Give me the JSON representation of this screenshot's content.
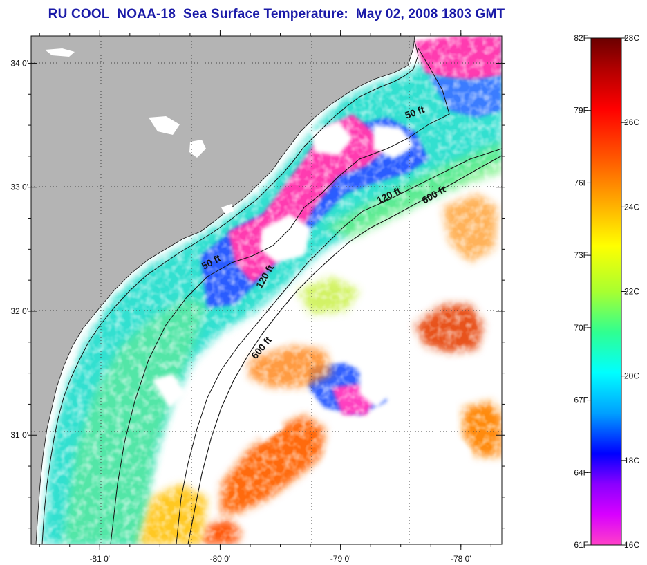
{
  "title": "RU COOL  NOAA-18  Sea Surface Temperature:  May 02, 2008 1803 GMT",
  "map": {
    "lat_ticks": [
      {
        "label": "34 0'",
        "value": 34.0
      },
      {
        "label": "33 0'",
        "value": 33.0
      },
      {
        "label": "32 0'",
        "value": 32.0
      },
      {
        "label": "31 0'",
        "value": 31.0
      }
    ],
    "lon_ticks": [
      {
        "label": "-81 0'",
        "value": -81.0
      },
      {
        "label": "-80 0'",
        "value": -80.0
      },
      {
        "label": "-79 0'",
        "value": -79.0
      },
      {
        "label": "-78 0'",
        "value": -78.0
      }
    ],
    "contour_labels": [
      {
        "text": "50 ft"
      },
      {
        "text": "50 ft"
      },
      {
        "text": "120 ft"
      },
      {
        "text": "120 ft"
      },
      {
        "text": "600 ft"
      },
      {
        "text": "600 ft"
      }
    ],
    "colors": {
      "land": "#b4b4b4",
      "cloud": "#ffffff",
      "grid": "#444444"
    }
  },
  "colorbar": {
    "fahrenheit_labels": [
      "82F",
      "79F",
      "76F",
      "73F",
      "70F",
      "67F",
      "64F",
      "61F"
    ],
    "celsius_labels": [
      "28C",
      "26C",
      "24C",
      "22C",
      "20C",
      "18C",
      "16C"
    ],
    "range_c": [
      16,
      28
    ],
    "range_f": [
      61,
      82
    ]
  }
}
